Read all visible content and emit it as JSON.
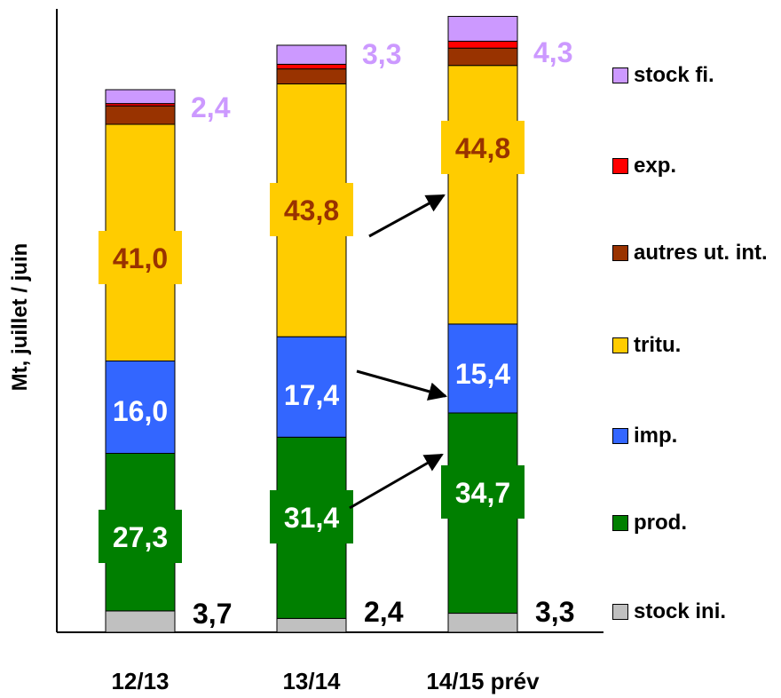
{
  "chart_data": {
    "type": "bar",
    "stacked": true,
    "ylabel": "Mt, juillet / juin",
    "categories": [
      "12/13",
      "13/14",
      "14/15 prév"
    ],
    "series": [
      {
        "name": "stock ini.",
        "color": "#c0c0c0",
        "values": [
          3.7,
          2.4,
          3.3
        ]
      },
      {
        "name": "prod.",
        "color": "#007f00",
        "values": [
          27.3,
          31.4,
          34.7
        ]
      },
      {
        "name": "imp.",
        "color": "#3366ff",
        "values": [
          16.0,
          17.4,
          15.4
        ]
      },
      {
        "name": "tritu.",
        "color": "#ffcc00",
        "values": [
          41.0,
          43.8,
          44.8
        ]
      },
      {
        "name": "autres ut. int.",
        "color": "#993300",
        "values": [
          3.2,
          2.6,
          3.0
        ]
      },
      {
        "name": "exp.",
        "color": "#ff0000",
        "values": [
          0.4,
          0.8,
          1.2
        ]
      },
      {
        "name": "stock fi.",
        "color": "#cc99ff",
        "values": [
          2.4,
          3.3,
          4.3
        ]
      }
    ],
    "data_labels": {
      "stock_ini": [
        "3,7",
        "2,4",
        "3,3"
      ],
      "prod": [
        "27,3",
        "31,4",
        "34,7"
      ],
      "imp": [
        "16,0",
        "17,4",
        "15,4"
      ],
      "tritu": [
        "41,0",
        "43,8",
        "44,8"
      ],
      "stock_fi": [
        "2,4",
        "3,3",
        "4,3"
      ]
    },
    "legend_order": [
      "stock fi.",
      "exp.",
      "autres ut. int.",
      "tritu.",
      "imp.",
      "prod.",
      "stock ini."
    ],
    "legend_position": "right",
    "grid": false,
    "ylim": [
      0,
      104
    ]
  }
}
